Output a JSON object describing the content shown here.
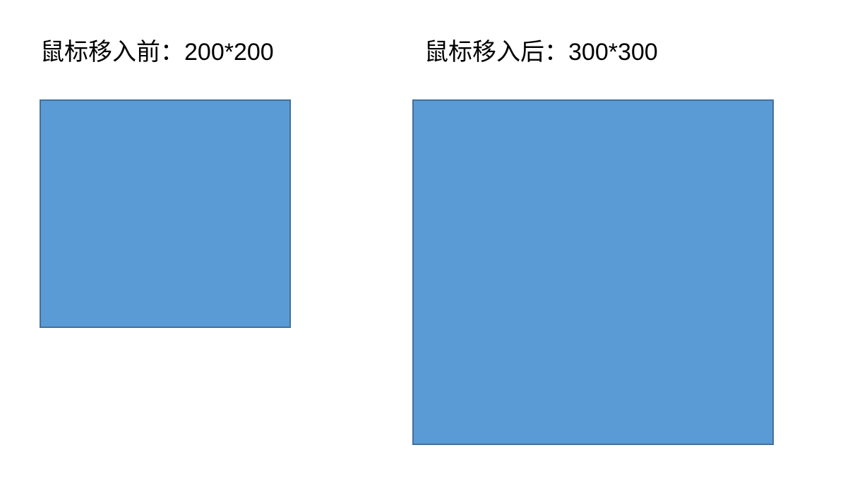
{
  "before": {
    "prefix": "鼠标移入前：",
    "size": "200*200"
  },
  "after": {
    "prefix": "鼠标移入后：",
    "size": "300*300"
  },
  "colors": {
    "box_fill": "#5b9bd5",
    "box_border": "#41719c",
    "background": "#ffffff",
    "text": "#000000"
  }
}
